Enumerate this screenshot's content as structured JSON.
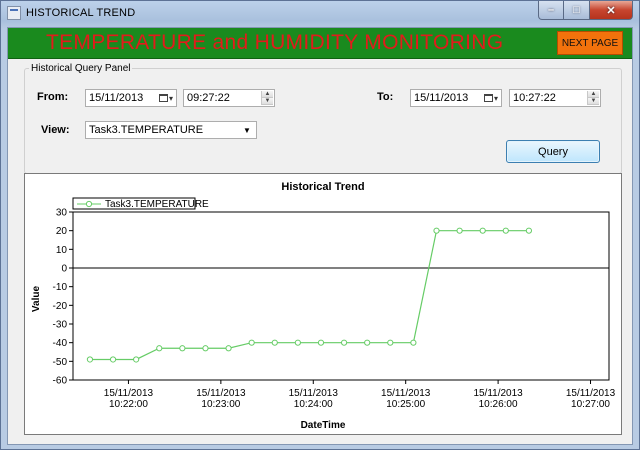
{
  "window": {
    "title": "HISTORICAL TREND"
  },
  "header": {
    "title": "TEMPERATURE and HUMIDITY MONITORING",
    "next_label": "NEXT PAGE",
    "band_color": "#1a8a1e",
    "title_color": "#e21b1b",
    "next_color": "#f2720c"
  },
  "query_panel": {
    "legend": "Historical Query Panel",
    "from_label": "From:",
    "from_date": "15/11/2013",
    "from_time": "09:27:22",
    "to_label": "To:",
    "to_date": "15/11/2013",
    "to_time": "10:27:22",
    "view_label": "View:",
    "view_value": "Task3.TEMPERATURE",
    "query_label": "Query"
  },
  "chart_data": {
    "type": "line",
    "title": "Historical Trend",
    "xlabel": "DateTime",
    "ylabel": "Value",
    "ylim": [
      -60,
      30
    ],
    "y_ticks": [
      30,
      20,
      10,
      0,
      -10,
      -20,
      -30,
      -40,
      -50,
      -60
    ],
    "x_tick_labels": [
      {
        "date": "15/11/2013",
        "time": "10:22:00"
      },
      {
        "date": "15/11/2013",
        "time": "10:23:00"
      },
      {
        "date": "15/11/2013",
        "time": "10:24:00"
      },
      {
        "date": "15/11/2013",
        "time": "10:25:00"
      },
      {
        "date": "15/11/2013",
        "time": "10:26:00"
      },
      {
        "date": "15/11/2013",
        "time": "10:27:00"
      }
    ],
    "xlim": [
      "10:21:24",
      "10:27:12"
    ],
    "series": [
      {
        "name": "Task3.TEMPERATURE",
        "color": "#66cc66",
        "x": [
          "10:21:35",
          "10:21:50",
          "10:22:05",
          "10:22:20",
          "10:22:35",
          "10:22:50",
          "10:23:05",
          "10:23:20",
          "10:23:35",
          "10:23:50",
          "10:24:05",
          "10:24:20",
          "10:24:35",
          "10:24:50",
          "10:25:05",
          "10:25:20",
          "10:25:35",
          "10:25:50",
          "10:26:05",
          "10:26:20"
        ],
        "values": [
          -49,
          -49,
          -49,
          -43,
          -43,
          -43,
          -43,
          -40,
          -40,
          -40,
          -40,
          -40,
          -40,
          -40,
          -40,
          20,
          20,
          20,
          20,
          20
        ]
      }
    ],
    "reference_line": 0,
    "grid": false,
    "legend": "top-left"
  }
}
